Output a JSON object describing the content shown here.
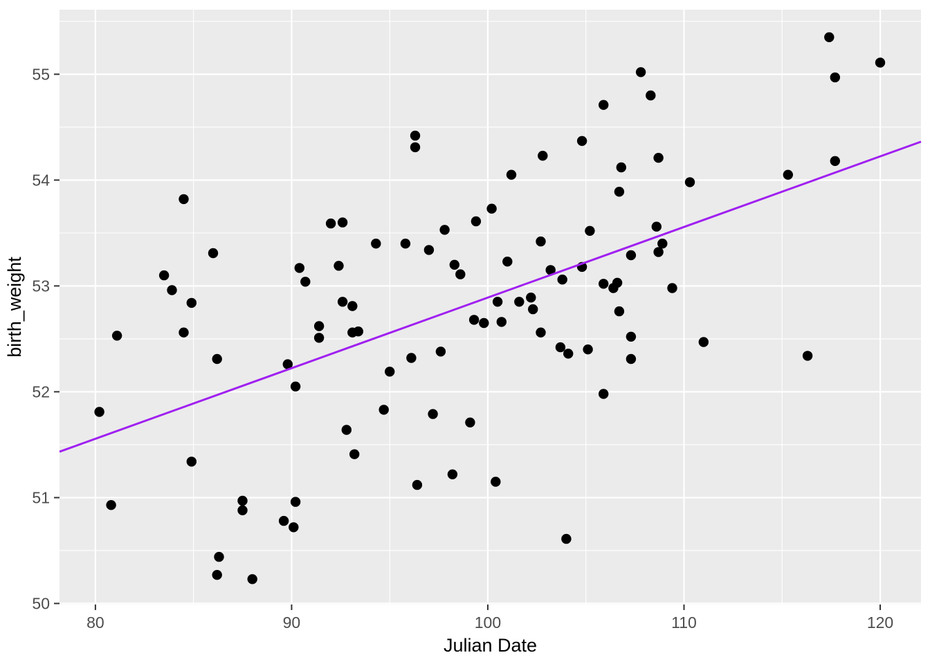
{
  "chart_data": {
    "type": "scatter",
    "title": "",
    "xlabel": "Julian Date",
    "ylabel": "birth_weight",
    "xlim": [
      78.17,
      122.08
    ],
    "ylim": [
      49.99,
      55.61
    ],
    "x_ticks": [
      80,
      90,
      100,
      110,
      120
    ],
    "y_ticks": [
      50,
      51,
      52,
      53,
      54,
      55
    ],
    "x_minor_ticks": [
      85,
      95,
      105,
      115
    ],
    "y_minor_ticks": [
      50.5,
      51.5,
      52.5,
      53.5,
      54.5,
      55.5
    ],
    "grid": true,
    "legend": "none",
    "trend_line": {
      "type": "linear",
      "intercept": 46.22,
      "slope": 0.0667,
      "x_start": 78.17,
      "x_end": 122.08
    },
    "points": [
      [
        84.5,
        53.82
      ],
      [
        96.3,
        54.42
      ],
      [
        96.3,
        54.31
      ],
      [
        107.8,
        55.02
      ],
      [
        108.3,
        54.8
      ],
      [
        105.9,
        54.71
      ],
      [
        104.8,
        54.37
      ],
      [
        102.8,
        54.23
      ],
      [
        108.7,
        54.21
      ],
      [
        106.8,
        54.12
      ],
      [
        101.2,
        54.05
      ],
      [
        110.3,
        53.98
      ],
      [
        106.7,
        53.89
      ],
      [
        100.2,
        53.73
      ],
      [
        117.4,
        55.35
      ],
      [
        120.0,
        55.11
      ],
      [
        117.7,
        54.97
      ],
      [
        117.7,
        54.18
      ],
      [
        115.3,
        54.05
      ],
      [
        86.0,
        53.31
      ],
      [
        83.5,
        53.1
      ],
      [
        83.9,
        52.96
      ],
      [
        84.9,
        52.84
      ],
      [
        84.5,
        52.56
      ],
      [
        81.1,
        52.53
      ],
      [
        86.2,
        52.31
      ],
      [
        92.0,
        53.59
      ],
      [
        92.6,
        53.6
      ],
      [
        97.8,
        53.53
      ],
      [
        99.4,
        53.61
      ],
      [
        94.3,
        53.4
      ],
      [
        95.8,
        53.4
      ],
      [
        97.0,
        53.34
      ],
      [
        90.4,
        53.17
      ],
      [
        92.4,
        53.19
      ],
      [
        98.3,
        53.2
      ],
      [
        98.6,
        53.11
      ],
      [
        90.7,
        53.04
      ],
      [
        92.6,
        52.85
      ],
      [
        93.1,
        52.81
      ],
      [
        91.4,
        52.62
      ],
      [
        99.3,
        52.68
      ],
      [
        99.8,
        52.65
      ],
      [
        93.1,
        52.56
      ],
      [
        93.4,
        52.57
      ],
      [
        91.4,
        52.51
      ],
      [
        89.8,
        52.26
      ],
      [
        96.1,
        52.32
      ],
      [
        97.6,
        52.38
      ],
      [
        95.0,
        52.19
      ],
      [
        90.2,
        52.05
      ],
      [
        108.6,
        53.56
      ],
      [
        105.2,
        53.52
      ],
      [
        102.7,
        53.42
      ],
      [
        108.9,
        53.4
      ],
      [
        108.7,
        53.32
      ],
      [
        107.3,
        53.29
      ],
      [
        101.0,
        53.23
      ],
      [
        103.2,
        53.15
      ],
      [
        104.8,
        53.18
      ],
      [
        103.8,
        53.06
      ],
      [
        105.9,
        53.02
      ],
      [
        106.6,
        53.03
      ],
      [
        106.4,
        52.98
      ],
      [
        109.4,
        52.98
      ],
      [
        100.5,
        52.85
      ],
      [
        101.6,
        52.85
      ],
      [
        102.2,
        52.89
      ],
      [
        102.3,
        52.78
      ],
      [
        100.7,
        52.66
      ],
      [
        102.7,
        52.56
      ],
      [
        106.7,
        52.76
      ],
      [
        107.3,
        52.52
      ],
      [
        103.7,
        52.42
      ],
      [
        104.1,
        52.36
      ],
      [
        105.1,
        52.4
      ],
      [
        107.3,
        52.31
      ],
      [
        111.0,
        52.47
      ],
      [
        105.9,
        51.98
      ],
      [
        116.3,
        52.34
      ],
      [
        80.2,
        51.81
      ],
      [
        84.9,
        51.34
      ],
      [
        80.8,
        50.93
      ],
      [
        87.5,
        50.97
      ],
      [
        87.5,
        50.88
      ],
      [
        86.3,
        50.44
      ],
      [
        86.2,
        50.27
      ],
      [
        88.0,
        50.23
      ],
      [
        94.7,
        51.83
      ],
      [
        97.2,
        51.79
      ],
      [
        99.1,
        51.71
      ],
      [
        92.8,
        51.64
      ],
      [
        93.2,
        51.41
      ],
      [
        98.2,
        51.22
      ],
      [
        96.4,
        51.12
      ],
      [
        90.2,
        50.96
      ],
      [
        89.6,
        50.78
      ],
      [
        90.1,
        50.72
      ],
      [
        100.4,
        51.15
      ],
      [
        104.0,
        50.61
      ]
    ],
    "colors": {
      "panel_background": "#EBEBEB",
      "gridline": "#FFFFFF",
      "point": "#000000",
      "trend_line": "#A020F0",
      "tick_label": "#4D4D4D",
      "axis_title": "#000000",
      "tick_mark": "#333333",
      "outer_background": "#FFFFFF"
    }
  }
}
